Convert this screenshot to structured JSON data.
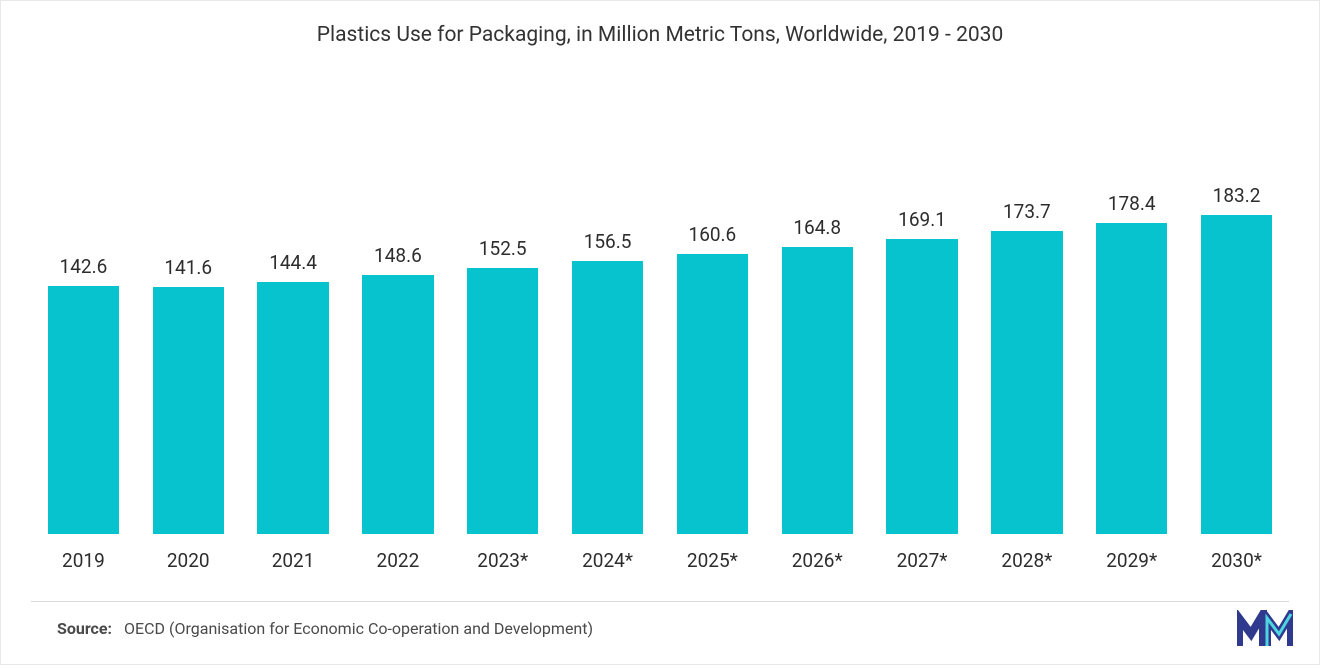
{
  "chart": {
    "type": "bar",
    "title": "Plastics Use for Packaging, in Million Metric Tons, Worldwide, 2019 - 2030",
    "title_fontsize": 21,
    "title_color": "#333333",
    "categories": [
      "2019",
      "2020",
      "2021",
      "2022",
      "2023*",
      "2024*",
      "2025*",
      "2026*",
      "2027*",
      "2028*",
      "2029*",
      "2030*"
    ],
    "values": [
      142.6,
      141.6,
      144.4,
      148.6,
      152.5,
      156.5,
      160.6,
      164.8,
      169.1,
      173.7,
      178.4,
      183.2
    ],
    "value_labels": [
      "142.6",
      "141.6",
      "144.4",
      "148.6",
      "152.5",
      "156.5",
      "160.6",
      "164.8",
      "169.1",
      "173.7",
      "178.4",
      "183.2"
    ],
    "bar_color": "#06c3cd",
    "background_color": "#ffffff",
    "ylim": [
      0,
      260
    ],
    "ymax_render": 260,
    "axis_label_fontsize": 19,
    "axis_label_color": "#2d2d2d",
    "value_label_fontsize": 19,
    "value_label_color": "#2d2d2d",
    "bar_width_ratio": 0.68,
    "grid": false,
    "divider_color": "#d9d9d9"
  },
  "source": {
    "label": "Source:",
    "text": "OECD (Organisation for Economic Co-operation and Development)",
    "fontsize": 16,
    "color": "#4a4a4a"
  },
  "logo": {
    "name": "mordor-intelligence-logo",
    "primary_color": "#2f3a8f",
    "accent_color": "#4dd5e0"
  }
}
